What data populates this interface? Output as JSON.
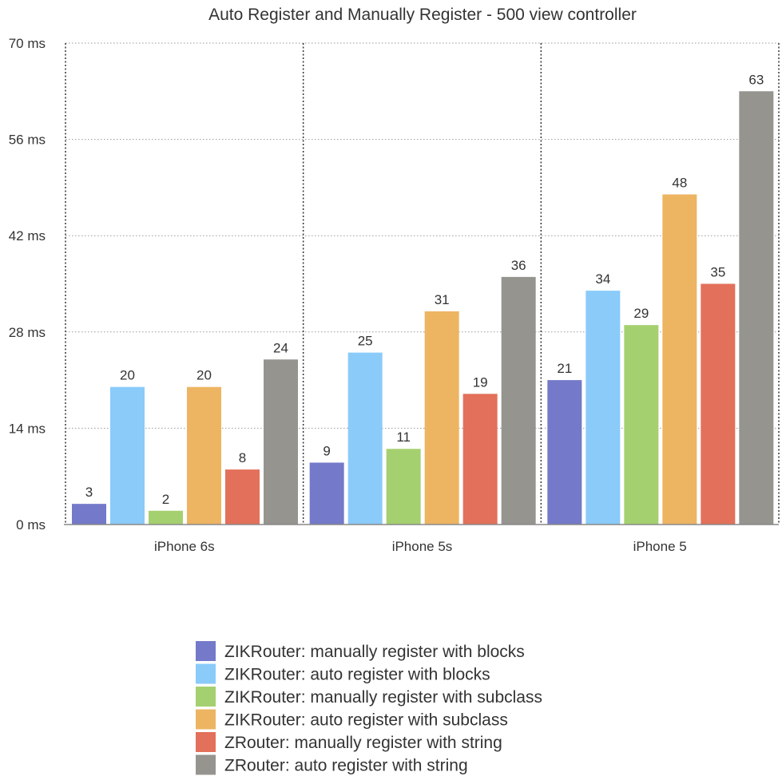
{
  "chart_data": {
    "type": "bar",
    "title": "Auto Register and Manually Register - 500 view controller",
    "xlabel": "",
    "ylabel": "",
    "ylim": [
      0,
      70
    ],
    "yticks": [
      0,
      14,
      28,
      42,
      56,
      70
    ],
    "ytick_labels": [
      "0 ms",
      "14 ms",
      "28 ms",
      "42 ms",
      "56 ms",
      "70 ms"
    ],
    "categories": [
      "iPhone 6s",
      "iPhone 5s",
      "iPhone 5"
    ],
    "series": [
      {
        "name": "ZIKRouter: manually register with blocks",
        "color": "#7479c9",
        "values": [
          3,
          9,
          21
        ]
      },
      {
        "name": "ZIKRouter: auto register with blocks",
        "color": "#8acbfa",
        "values": [
          20,
          25,
          34
        ]
      },
      {
        "name": "ZIKRouter: manually register with subclass",
        "color": "#a5d06f",
        "values": [
          2,
          11,
          29
        ]
      },
      {
        "name": "ZIKRouter: auto register with subclass",
        "color": "#edb462",
        "values": [
          20,
          31,
          48
        ]
      },
      {
        "name": "ZRouter: manually register with string",
        "color": "#e3705a",
        "values": [
          8,
          19,
          35
        ]
      },
      {
        "name": "ZRouter: auto register with string",
        "color": "#95948f",
        "values": [
          24,
          36,
          63
        ]
      }
    ],
    "grid": true,
    "legend_position": "bottom-center"
  }
}
